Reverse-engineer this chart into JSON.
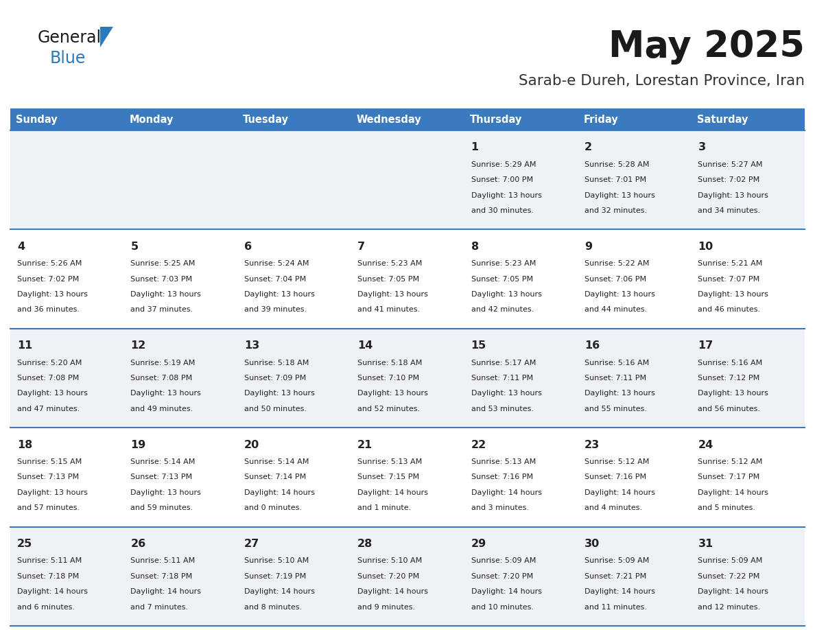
{
  "title": "May 2025",
  "subtitle": "Sarab-e Dureh, Lorestan Province, Iran",
  "days_of_week": [
    "Sunday",
    "Monday",
    "Tuesday",
    "Wednesday",
    "Thursday",
    "Friday",
    "Saturday"
  ],
  "header_bg": "#3a7abf",
  "header_text": "#ffffff",
  "row_bg_odd": "#eef2f7",
  "row_bg_even": "#ffffff",
  "separator_color": "#3a7abf",
  "text_color": "#222222",
  "title_color": "#1a1a1a",
  "subtitle_color": "#333333",
  "logo_general_color": "#1a1a1a",
  "logo_blue_color": "#2a7abf",
  "weeks": [
    [
      {
        "day": null,
        "sunrise": null,
        "sunset": null,
        "daylight": null
      },
      {
        "day": null,
        "sunrise": null,
        "sunset": null,
        "daylight": null
      },
      {
        "day": null,
        "sunrise": null,
        "sunset": null,
        "daylight": null
      },
      {
        "day": null,
        "sunrise": null,
        "sunset": null,
        "daylight": null
      },
      {
        "day": 1,
        "sunrise": "5:29 AM",
        "sunset": "7:00 PM",
        "daylight": "13 hours\nand 30 minutes."
      },
      {
        "day": 2,
        "sunrise": "5:28 AM",
        "sunset": "7:01 PM",
        "daylight": "13 hours\nand 32 minutes."
      },
      {
        "day": 3,
        "sunrise": "5:27 AM",
        "sunset": "7:02 PM",
        "daylight": "13 hours\nand 34 minutes."
      }
    ],
    [
      {
        "day": 4,
        "sunrise": "5:26 AM",
        "sunset": "7:02 PM",
        "daylight": "13 hours\nand 36 minutes."
      },
      {
        "day": 5,
        "sunrise": "5:25 AM",
        "sunset": "7:03 PM",
        "daylight": "13 hours\nand 37 minutes."
      },
      {
        "day": 6,
        "sunrise": "5:24 AM",
        "sunset": "7:04 PM",
        "daylight": "13 hours\nand 39 minutes."
      },
      {
        "day": 7,
        "sunrise": "5:23 AM",
        "sunset": "7:05 PM",
        "daylight": "13 hours\nand 41 minutes."
      },
      {
        "day": 8,
        "sunrise": "5:23 AM",
        "sunset": "7:05 PM",
        "daylight": "13 hours\nand 42 minutes."
      },
      {
        "day": 9,
        "sunrise": "5:22 AM",
        "sunset": "7:06 PM",
        "daylight": "13 hours\nand 44 minutes."
      },
      {
        "day": 10,
        "sunrise": "5:21 AM",
        "sunset": "7:07 PM",
        "daylight": "13 hours\nand 46 minutes."
      }
    ],
    [
      {
        "day": 11,
        "sunrise": "5:20 AM",
        "sunset": "7:08 PM",
        "daylight": "13 hours\nand 47 minutes."
      },
      {
        "day": 12,
        "sunrise": "5:19 AM",
        "sunset": "7:08 PM",
        "daylight": "13 hours\nand 49 minutes."
      },
      {
        "day": 13,
        "sunrise": "5:18 AM",
        "sunset": "7:09 PM",
        "daylight": "13 hours\nand 50 minutes."
      },
      {
        "day": 14,
        "sunrise": "5:18 AM",
        "sunset": "7:10 PM",
        "daylight": "13 hours\nand 52 minutes."
      },
      {
        "day": 15,
        "sunrise": "5:17 AM",
        "sunset": "7:11 PM",
        "daylight": "13 hours\nand 53 minutes."
      },
      {
        "day": 16,
        "sunrise": "5:16 AM",
        "sunset": "7:11 PM",
        "daylight": "13 hours\nand 55 minutes."
      },
      {
        "day": 17,
        "sunrise": "5:16 AM",
        "sunset": "7:12 PM",
        "daylight": "13 hours\nand 56 minutes."
      }
    ],
    [
      {
        "day": 18,
        "sunrise": "5:15 AM",
        "sunset": "7:13 PM",
        "daylight": "13 hours\nand 57 minutes."
      },
      {
        "day": 19,
        "sunrise": "5:14 AM",
        "sunset": "7:13 PM",
        "daylight": "13 hours\nand 59 minutes."
      },
      {
        "day": 20,
        "sunrise": "5:14 AM",
        "sunset": "7:14 PM",
        "daylight": "14 hours\nand 0 minutes."
      },
      {
        "day": 21,
        "sunrise": "5:13 AM",
        "sunset": "7:15 PM",
        "daylight": "14 hours\nand 1 minute."
      },
      {
        "day": 22,
        "sunrise": "5:13 AM",
        "sunset": "7:16 PM",
        "daylight": "14 hours\nand 3 minutes."
      },
      {
        "day": 23,
        "sunrise": "5:12 AM",
        "sunset": "7:16 PM",
        "daylight": "14 hours\nand 4 minutes."
      },
      {
        "day": 24,
        "sunrise": "5:12 AM",
        "sunset": "7:17 PM",
        "daylight": "14 hours\nand 5 minutes."
      }
    ],
    [
      {
        "day": 25,
        "sunrise": "5:11 AM",
        "sunset": "7:18 PM",
        "daylight": "14 hours\nand 6 minutes."
      },
      {
        "day": 26,
        "sunrise": "5:11 AM",
        "sunset": "7:18 PM",
        "daylight": "14 hours\nand 7 minutes."
      },
      {
        "day": 27,
        "sunrise": "5:10 AM",
        "sunset": "7:19 PM",
        "daylight": "14 hours\nand 8 minutes."
      },
      {
        "day": 28,
        "sunrise": "5:10 AM",
        "sunset": "7:20 PM",
        "daylight": "14 hours\nand 9 minutes."
      },
      {
        "day": 29,
        "sunrise": "5:09 AM",
        "sunset": "7:20 PM",
        "daylight": "14 hours\nand 10 minutes."
      },
      {
        "day": 30,
        "sunrise": "5:09 AM",
        "sunset": "7:21 PM",
        "daylight": "14 hours\nand 11 minutes."
      },
      {
        "day": 31,
        "sunrise": "5:09 AM",
        "sunset": "7:22 PM",
        "daylight": "14 hours\nand 12 minutes."
      }
    ]
  ]
}
